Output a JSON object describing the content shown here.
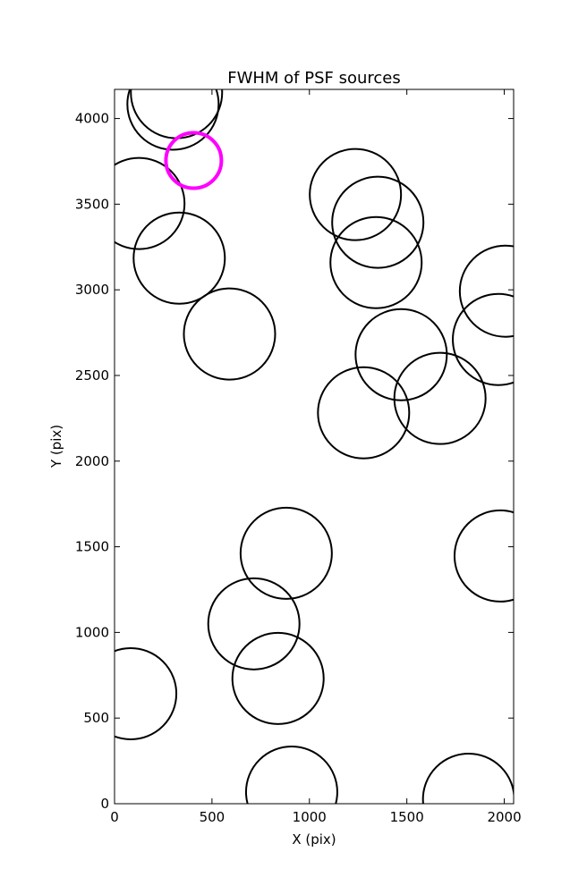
{
  "chart_data": {
    "type": "scatter",
    "title": "FWHM of PSF sources",
    "x_label": "X (pix)",
    "y_label": "Y (pix)",
    "xlim": [
      0,
      2048
    ],
    "ylim": [
      0,
      4170
    ],
    "xticks": [
      0,
      500,
      1000,
      1500,
      2000
    ],
    "yticks": [
      0,
      500,
      1000,
      1500,
      2000,
      2500,
      3000,
      3500,
      4000
    ],
    "series": [
      {
        "color": "#000000",
        "x": [
          300,
          318,
          125,
          332,
          590,
          1236,
          1351,
          1342,
          2006,
          1970,
          1471,
          1670,
          1278,
          881,
          1979,
          715,
          839,
          83,
          909,
          1817
        ],
        "values": [
          4084,
          4151,
          3504,
          3185,
          2742,
          3556,
          3394,
          3159,
          2992,
          2710,
          2621,
          2366,
          2282,
          1462,
          1446,
          1050,
          731,
          642,
          68,
          26
        ],
        "sizes": [
          51,
          51,
          51,
          51,
          51,
          51,
          51,
          51,
          51,
          51,
          51,
          51,
          51,
          51,
          51,
          51,
          51,
          51,
          51,
          51
        ]
      },
      {
        "color": "#ff00ff",
        "x": [
          406
        ],
        "values": [
          3755
        ],
        "sizes": [
          31
        ]
      }
    ]
  }
}
